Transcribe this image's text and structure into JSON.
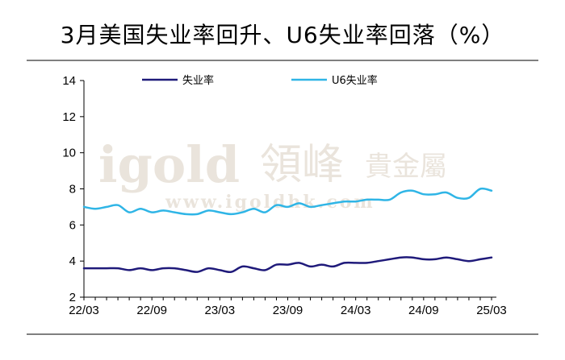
{
  "title": "3月美国失业率回升、U6失业率回落（%）",
  "watermark": {
    "brand": "igold",
    "brand_cn": "領峰",
    "brand_cn2": "貴金屬",
    "url": "www.igoldhk.com"
  },
  "chart_data": {
    "type": "line",
    "title": "3月美国失业率回升、U6失业率回落（%）",
    "xlabel": "",
    "ylabel": "",
    "ylim": [
      2,
      14
    ],
    "yticks": [
      2,
      4,
      6,
      8,
      10,
      12,
      14
    ],
    "xtick_labels": [
      "22/03",
      "22/09",
      "23/03",
      "23/09",
      "24/03",
      "24/09",
      "25/03"
    ],
    "x": [
      "22/03",
      "22/04",
      "22/05",
      "22/06",
      "22/07",
      "22/08",
      "22/09",
      "22/10",
      "22/11",
      "22/12",
      "23/01",
      "23/02",
      "23/03",
      "23/04",
      "23/05",
      "23/06",
      "23/07",
      "23/08",
      "23/09",
      "23/10",
      "23/11",
      "23/12",
      "24/01",
      "24/02",
      "24/03",
      "24/04",
      "24/05",
      "24/06",
      "24/07",
      "24/08",
      "24/09",
      "24/10",
      "24/11",
      "24/12",
      "25/01",
      "25/02",
      "25/03"
    ],
    "legend_position": "top",
    "grid": false,
    "series": [
      {
        "name": "失业率",
        "color": "#1f1a7a",
        "values": [
          3.6,
          3.6,
          3.6,
          3.6,
          3.5,
          3.6,
          3.5,
          3.6,
          3.6,
          3.5,
          3.4,
          3.6,
          3.5,
          3.4,
          3.7,
          3.6,
          3.5,
          3.8,
          3.8,
          3.9,
          3.7,
          3.8,
          3.7,
          3.9,
          3.9,
          3.9,
          4.0,
          4.1,
          4.2,
          4.2,
          4.1,
          4.1,
          4.2,
          4.1,
          4.0,
          4.1,
          4.2
        ]
      },
      {
        "name": "U6失业率",
        "color": "#2fb5e6",
        "values": [
          7.0,
          6.9,
          7.0,
          7.1,
          6.7,
          6.9,
          6.7,
          6.8,
          6.7,
          6.6,
          6.6,
          6.8,
          6.7,
          6.6,
          6.7,
          6.9,
          6.7,
          7.1,
          7.0,
          7.2,
          7.0,
          7.1,
          7.2,
          7.3,
          7.3,
          7.4,
          7.4,
          7.4,
          7.8,
          7.9,
          7.7,
          7.7,
          7.8,
          7.5,
          7.5,
          8.0,
          7.9
        ]
      }
    ]
  }
}
